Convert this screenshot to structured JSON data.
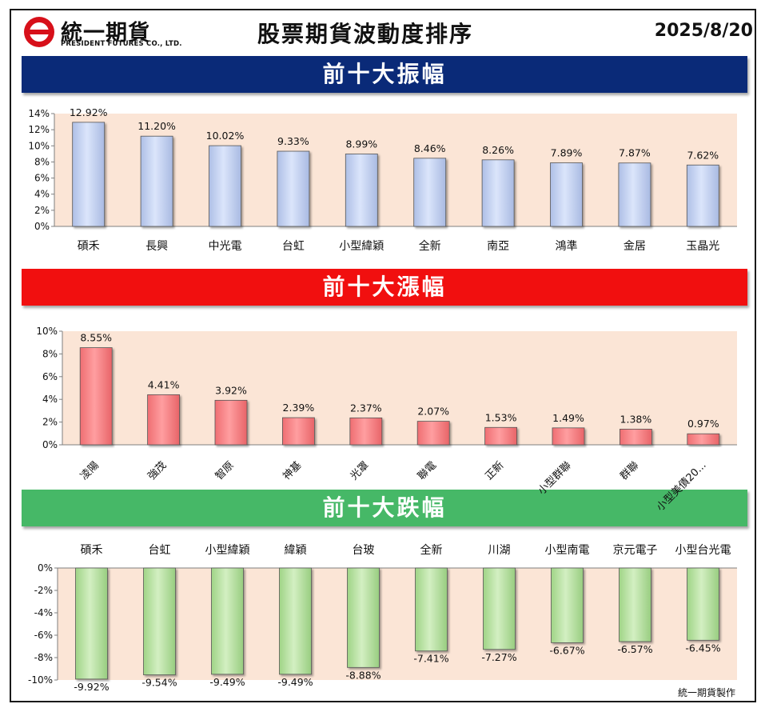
{
  "header": {
    "logo_cn": "統一期貨",
    "logo_en": "PRESIDENT FUTURES CO., LTD.",
    "title": "股票期貨波動度排序",
    "date": "2025/8/20"
  },
  "colors": {
    "amp_banner": "#0a2a78",
    "up_banner": "#f10f0f",
    "down_banner": "#46b867",
    "plot_bg": "#fbe5d6",
    "amp_bar": "#c3d3f2",
    "up_bar": "#f47a7d",
    "down_bar": "#b5e09c"
  },
  "chart_data": [
    {
      "type": "bar",
      "banner": "前十大振幅",
      "categories": [
        "碩禾",
        "長興",
        "中光電",
        "台虹",
        "小型緯穎",
        "全新",
        "南亞",
        "鴻準",
        "金居",
        "玉晶光"
      ],
      "values": [
        12.92,
        11.2,
        10.02,
        9.33,
        8.99,
        8.46,
        8.26,
        7.89,
        7.87,
        7.62
      ],
      "data_labels": [
        "12.92%",
        "11.20%",
        "10.02%",
        "9.33%",
        "8.99%",
        "8.46%",
        "8.26%",
        "7.89%",
        "7.87%",
        "7.62%"
      ],
      "yticks": [
        "0%",
        "2%",
        "4%",
        "6%",
        "8%",
        "10%",
        "12%",
        "14%"
      ],
      "ylim": [
        0,
        14
      ],
      "grid": false,
      "legend": "none"
    },
    {
      "type": "bar",
      "banner": "前十大漲幅",
      "categories": [
        "凌陽",
        "強茂",
        "智原",
        "神基",
        "光罩",
        "聯電",
        "正新",
        "小型群聯",
        "群聯",
        "小型美債20..."
      ],
      "values": [
        8.55,
        4.41,
        3.92,
        2.39,
        2.37,
        2.07,
        1.53,
        1.49,
        1.38,
        0.97
      ],
      "data_labels": [
        "8.55%",
        "4.41%",
        "3.92%",
        "2.39%",
        "2.37%",
        "2.07%",
        "1.53%",
        "1.49%",
        "1.38%",
        "0.97%"
      ],
      "yticks": [
        "0%",
        "2%",
        "4%",
        "6%",
        "8%",
        "10%"
      ],
      "ylim": [
        0,
        10
      ],
      "grid": false,
      "legend": "none"
    },
    {
      "type": "bar",
      "banner": "前十大跌幅",
      "categories": [
        "碩禾",
        "台虹",
        "小型緯穎",
        "緯穎",
        "台玻",
        "全新",
        "川湖",
        "小型南電",
        "京元電子",
        "小型台光電"
      ],
      "values": [
        -9.92,
        -9.54,
        -9.49,
        -9.49,
        -8.88,
        -7.41,
        -7.27,
        -6.67,
        -6.57,
        -6.45
      ],
      "data_labels": [
        "-9.92%",
        "-9.54%",
        "-9.49%",
        "-9.49%",
        "-8.88%",
        "-7.41%",
        "-7.27%",
        "-6.67%",
        "-6.57%",
        "-6.45%"
      ],
      "yticks": [
        "0%",
        "-2%",
        "-4%",
        "-6%",
        "-8%",
        "-10%"
      ],
      "ylim": [
        -10,
        0
      ],
      "grid": false,
      "legend": "none"
    }
  ],
  "footer": {
    "credit": "統一期貨製作"
  }
}
